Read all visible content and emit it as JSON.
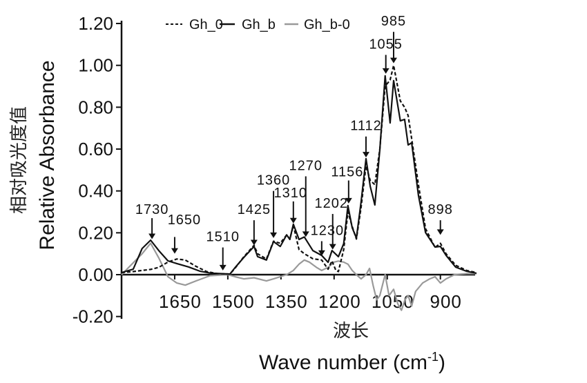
{
  "chart_data": {
    "type": "line",
    "xlabel_cn": "波长",
    "xlabel": "Wave number (cm",
    "xlabel_sup": "-1",
    "xlabel_close": ")",
    "ylabel_cn": "相对吸光度值",
    "ylabel": "Relative Absorbance",
    "xlim": [
      1800,
      800
    ],
    "ylim": [
      -0.2,
      1.2
    ],
    "x_reversed": true,
    "grid": false,
    "legend_position": "top",
    "xticks": [
      1650,
      1500,
      1350,
      1200,
      1050,
      900
    ],
    "xtick_labels": [
      "1650",
      "1500",
      "1350",
      "1200",
      "1050",
      "900"
    ],
    "yticks": [
      -0.2,
      0,
      0.2,
      0.4,
      0.6,
      0.8,
      1.0,
      1.2
    ],
    "ytick_labels": [
      "-0.20",
      "0.00",
      "0.20",
      "0.40",
      "0.60",
      "0.80",
      "1.00",
      "1.20"
    ],
    "series": [
      {
        "name": "Gh_0",
        "style": "dashed",
        "color": "#111111",
        "x": [
          1800,
          1767,
          1742,
          1718,
          1695,
          1669,
          1644,
          1620,
          1590,
          1560,
          1530,
          1494,
          1480,
          1455,
          1426,
          1416,
          1391,
          1371,
          1352,
          1334,
          1325,
          1315,
          1299,
          1284,
          1260,
          1235,
          1217,
          1206,
          1195,
          1188,
          1173,
          1161,
          1149,
          1137,
          1124,
          1110,
          1098,
          1085,
          1071,
          1056,
          1042,
          1032,
          1013,
          1001,
          991,
          981,
          962,
          942,
          915,
          900,
          884,
          857,
          826,
          798
        ],
        "y": [
          0.01,
          0.015,
          0.02,
          0.025,
          0.035,
          0.06,
          0.075,
          0.07,
          0.04,
          0.015,
          0.005,
          0.003,
          0.03,
          0.085,
          0.14,
          0.1,
          0.075,
          0.16,
          0.15,
          0.19,
          0.17,
          0.235,
          0.12,
          0.1,
          0.076,
          0.07,
          0.026,
          0.066,
          0.02,
          0.015,
          0.12,
          0.3,
          0.23,
          0.17,
          0.32,
          0.52,
          0.45,
          0.43,
          0.6,
          0.9,
          0.93,
          1.0,
          0.83,
          0.8,
          0.76,
          0.65,
          0.43,
          0.22,
          0.13,
          0.15,
          0.1,
          0.045,
          0.02,
          0.01
        ]
      },
      {
        "name": "Gh_b",
        "style": "solid",
        "color": "#111111",
        "x": [
          1800,
          1767,
          1742,
          1718,
          1695,
          1669,
          1644,
          1611,
          1578,
          1547,
          1494,
          1480,
          1455,
          1426,
          1416,
          1391,
          1371,
          1352,
          1334,
          1325,
          1315,
          1299,
          1284,
          1260,
          1235,
          1217,
          1206,
          1188,
          1173,
          1161,
          1149,
          1137,
          1124,
          1110,
          1098,
          1085,
          1071,
          1056,
          1042,
          1032,
          1013,
          1001,
          991,
          981,
          962,
          942,
          915,
          900,
          884,
          857,
          826,
          798
        ],
        "y": [
          0.01,
          0.026,
          0.125,
          0.165,
          0.115,
          0.066,
          0.053,
          0.037,
          0.016,
          0.007,
          0.003,
          0.033,
          0.082,
          0.135,
          0.086,
          0.07,
          0.158,
          0.135,
          0.19,
          0.168,
          0.241,
          0.168,
          0.18,
          0.115,
          0.092,
          0.059,
          0.115,
          0.086,
          0.148,
          0.33,
          0.224,
          0.175,
          0.346,
          0.554,
          0.422,
          0.333,
          0.597,
          0.95,
          0.725,
          0.927,
          0.735,
          0.742,
          0.62,
          0.63,
          0.379,
          0.201,
          0.132,
          0.135,
          0.092,
          0.036,
          0.016,
          0.007
        ]
      },
      {
        "name": "Gh_b-0",
        "style": "solid",
        "color": "#999999",
        "x": [
          1800,
          1742,
          1718,
          1695,
          1669,
          1644,
          1620,
          1590,
          1550,
          1500,
          1480,
          1455,
          1426,
          1391,
          1371,
          1352,
          1334,
          1315,
          1299,
          1284,
          1270,
          1250,
          1235,
          1217,
          1200,
          1188,
          1173,
          1161,
          1149,
          1137,
          1124,
          1110,
          1100,
          1090,
          1080,
          1071,
          1056,
          1045,
          1032,
          1020,
          1010,
          1000,
          991,
          981,
          970,
          950,
          930,
          915,
          900,
          884,
          860,
          826,
          798
        ],
        "y": [
          0,
          0.1,
          0.15,
          0.08,
          -0.01,
          -0.04,
          -0.05,
          -0.03,
          -0.005,
          0,
          -0.01,
          -0.02,
          -0.015,
          -0.03,
          -0.02,
          -0.01,
          0,
          0.02,
          0.05,
          0.07,
          0.06,
          0.035,
          0.02,
          0.035,
          0.06,
          0.065,
          0.06,
          0.05,
          0.02,
          0,
          -0.02,
          0,
          0.03,
          -0.05,
          -0.12,
          -0.1,
          0,
          -0.1,
          -0.07,
          -0.14,
          -0.17,
          -0.12,
          -0.1,
          -0.15,
          -0.08,
          -0.04,
          -0.02,
          -0.01,
          -0.04,
          -0.02,
          0,
          0.005,
          0.005
        ]
      }
    ],
    "annotations": [
      {
        "label": "1730",
        "x": 1714,
        "y_top": 0.27,
        "y_tip": 0.17,
        "label_y": 0.29
      },
      {
        "label": "1650",
        "x": 1650,
        "y_top": 0.18,
        "y_tip": 0.1,
        "label_y": 0.24
      },
      {
        "label": "1510",
        "x": 1514,
        "y_top": 0.13,
        "y_tip": 0.02,
        "label_y": 0.16
      },
      {
        "label": "1425",
        "x": 1426,
        "y_top": 0.26,
        "y_tip": 0.14,
        "label_y": 0.29
      },
      {
        "label": "1360",
        "x": 1371,
        "y_top": 0.4,
        "y_tip": 0.175,
        "label_y": 0.43
      },
      {
        "label": "1310",
        "x": 1315,
        "y_top": 0.35,
        "y_tip": 0.245,
        "label_y": 0.37
      },
      {
        "label": "1270",
        "x": 1280,
        "y_top": 0.47,
        "y_tip": 0.18,
        "label_y": 0.5
      },
      {
        "label": "1230",
        "x": 1235,
        "y_top": 0.16,
        "y_tip": 0.09,
        "label_y": 0.19
      },
      {
        "label": "1202",
        "x": 1204,
        "y_top": 0.29,
        "y_tip": 0.12,
        "label_y": 0.32
      },
      {
        "label": "1156",
        "x": 1159,
        "y_top": 0.45,
        "y_tip": 0.34,
        "label_y": 0.47
      },
      {
        "label": "1112",
        "x": 1110,
        "y_top": 0.66,
        "y_tip": 0.56,
        "label_y": 0.69
      },
      {
        "label": "1055",
        "x": 1054,
        "y_top": 1.05,
        "y_tip": 0.96,
        "label_y": 1.08
      },
      {
        "label": "985",
        "x": 1032,
        "y_top": 1.16,
        "y_tip": 1.01,
        "label_y": 1.19
      },
      {
        "label": "898",
        "x": 900,
        "y_top": 0.26,
        "y_tip": 0.19,
        "label_y": 0.29
      }
    ]
  }
}
